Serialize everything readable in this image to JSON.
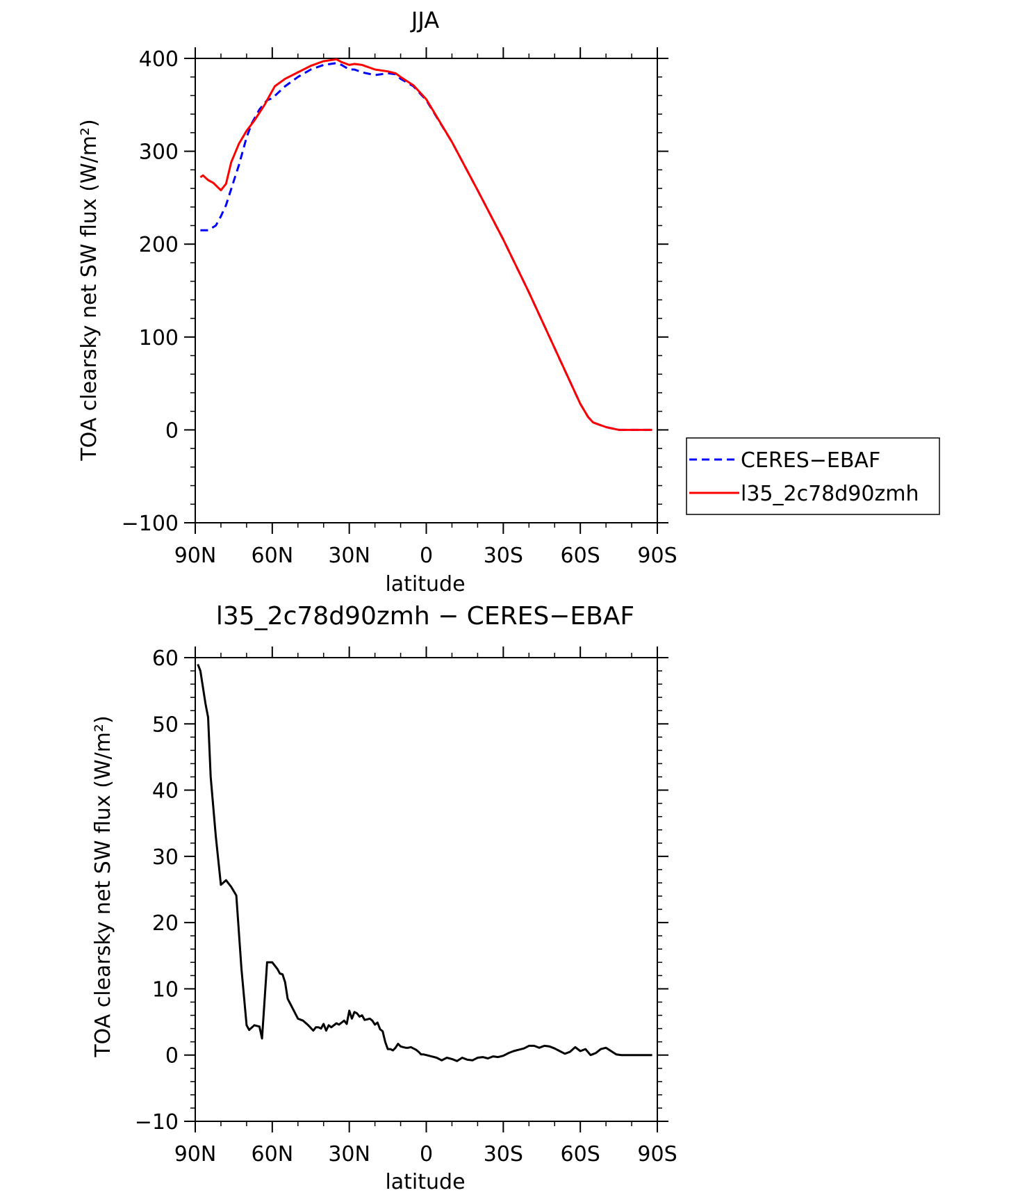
{
  "colors": {
    "axis": "#000000",
    "ceres": "#0000ff",
    "model": "#ff0000",
    "diff": "#000000",
    "background": "#ffffff"
  },
  "chart_data": [
    {
      "type": "line",
      "title": "JJA",
      "xlabel": "latitude",
      "ylabel": "TOA clearsky net SW flux (W/m²)",
      "xlim": [
        90,
        -90
      ],
      "ylim": [
        -100,
        400
      ],
      "xticks": [
        90,
        60,
        30,
        0,
        -30,
        -60,
        -90
      ],
      "xtick_labels": [
        "90N",
        "60N",
        "30N",
        "0",
        "30S",
        "60S",
        "90S"
      ],
      "yticks": [
        -100,
        0,
        100,
        200,
        300,
        400
      ],
      "ytick_labels": [
        "−100",
        "0",
        "100",
        "200",
        "300",
        "400"
      ],
      "legend": {
        "position": "right",
        "entries": [
          "CERES−EBAF",
          "l35_2c78d90zmh"
        ]
      },
      "series": [
        {
          "name": "CERES−EBAF",
          "color": "#0000ff",
          "dash": "dashed",
          "x": [
            88,
            85,
            82,
            80,
            78,
            75,
            73,
            70,
            68,
            65,
            62,
            60,
            55,
            50,
            45,
            40,
            35,
            33,
            30,
            28,
            25,
            20,
            15,
            12,
            10,
            5,
            0,
            -10,
            -20,
            -30,
            -40,
            -50,
            -55,
            -60,
            -63,
            -65,
            -70,
            -75,
            -80,
            -88
          ],
          "y": [
            215,
            215,
            220,
            230,
            242,
            268,
            285,
            315,
            330,
            345,
            355,
            357,
            370,
            380,
            388,
            393,
            395,
            393,
            388,
            388,
            385,
            382,
            384,
            383,
            378,
            370,
            355,
            310,
            258,
            205,
            148,
            88,
            58,
            28,
            14,
            8,
            3,
            0,
            0,
            0
          ]
        },
        {
          "name": "l35_2c78d90zmh",
          "color": "#ff0000",
          "dash": "solid",
          "x": [
            88,
            87,
            85,
            83,
            80,
            78,
            76,
            73,
            70,
            67,
            63,
            61,
            59,
            55,
            50,
            45,
            40,
            35,
            33,
            30,
            28,
            25,
            20,
            15,
            12,
            10,
            5,
            0,
            -10,
            -20,
            -30,
            -40,
            -50,
            -55,
            -60,
            -63,
            -65,
            -70,
            -75,
            -80,
            -88
          ],
          "y": [
            272,
            274,
            269,
            266,
            258,
            265,
            288,
            308,
            322,
            333,
            350,
            360,
            370,
            378,
            385,
            392,
            397,
            399,
            396,
            393,
            394,
            393,
            388,
            386,
            384,
            380,
            371,
            356,
            310,
            258,
            205,
            148,
            88,
            58,
            28,
            14,
            8,
            3,
            0,
            0,
            0
          ]
        }
      ]
    },
    {
      "type": "line",
      "title": "l35_2c78d90zmh − CERES−EBAF",
      "xlabel": "latitude",
      "ylabel": "TOA clearsky net SW flux (W/m²)",
      "xlim": [
        90,
        -90
      ],
      "ylim": [
        -10,
        60
      ],
      "xticks": [
        90,
        60,
        30,
        0,
        -30,
        -60,
        -90
      ],
      "xtick_labels": [
        "90N",
        "60N",
        "30N",
        "0",
        "30S",
        "60S",
        "90S"
      ],
      "yticks": [
        -10,
        0,
        10,
        20,
        30,
        40,
        50,
        60
      ],
      "ytick_labels": [
        "−10",
        "0",
        "10",
        "20",
        "30",
        "40",
        "50",
        "60"
      ],
      "series": [
        {
          "color": "#000000",
          "dash": "solid",
          "x": [
            89,
            88,
            86,
            85,
            84,
            82,
            80,
            78,
            76,
            74,
            72,
            70,
            69,
            67,
            65,
            64,
            62,
            60,
            59,
            58,
            57,
            56,
            55,
            54,
            52,
            50,
            48,
            46,
            44,
            43,
            42,
            41,
            40,
            39,
            38,
            37,
            36,
            35,
            34,
            33,
            32,
            31,
            30,
            29,
            28,
            27,
            26,
            25,
            24,
            23,
            22,
            21,
            20,
            19,
            18,
            17,
            16,
            15,
            14,
            13,
            12,
            11,
            10,
            9,
            8,
            7,
            6,
            5,
            4,
            3,
            2,
            1,
            0,
            -2,
            -4,
            -6,
            -8,
            -10,
            -12,
            -14,
            -16,
            -18,
            -20,
            -22,
            -24,
            -26,
            -28,
            -30,
            -32,
            -34,
            -36,
            -38,
            -40,
            -42,
            -44,
            -46,
            -48,
            -50,
            -52,
            -54,
            -56,
            -58,
            -60,
            -62,
            -64,
            -66,
            -68,
            -70,
            -72,
            -74,
            -76,
            -78,
            -80,
            -82,
            -84,
            -86,
            -88
          ],
          "y": [
            59,
            58,
            53,
            51,
            42,
            33,
            25.7,
            26.4,
            25.4,
            24.1,
            13,
            4.5,
            3.8,
            4.5,
            4.3,
            2.5,
            14,
            14,
            13.5,
            13,
            12.3,
            12.2,
            11,
            8.5,
            7,
            5.5,
            5.2,
            4.5,
            3.7,
            4.2,
            4.2,
            4.0,
            4.7,
            3.7,
            4.5,
            4.2,
            4.5,
            4.8,
            4.6,
            4.9,
            5.2,
            4.7,
            6.7,
            5.5,
            6.5,
            6.3,
            5.8,
            6.0,
            5.3,
            5.4,
            5.5,
            5.2,
            4.6,
            4.9,
            3.9,
            3.6,
            2.0,
            0.9,
            0.9,
            0.7,
            1.1,
            1.7,
            1.3,
            1.2,
            1.1,
            1.1,
            1.2,
            1.0,
            0.8,
            0.5,
            0.1,
            0.1,
            0,
            -0.2,
            -0.4,
            -0.8,
            -0.4,
            -0.6,
            -0.9,
            -0.4,
            -0.7,
            -0.8,
            -0.4,
            -0.3,
            -0.5,
            -0.2,
            -0.3,
            -0.1,
            0.3,
            0.6,
            0.8,
            1.0,
            1.4,
            1.4,
            1.1,
            1.4,
            1.3,
            1.0,
            0.6,
            0.2,
            0.5,
            1.2,
            0.6,
            0.9,
            0.0,
            0.3,
            0.9,
            1.1,
            0.6,
            0.1,
            0,
            0,
            0,
            0,
            0,
            0,
            0
          ]
        }
      ]
    }
  ]
}
